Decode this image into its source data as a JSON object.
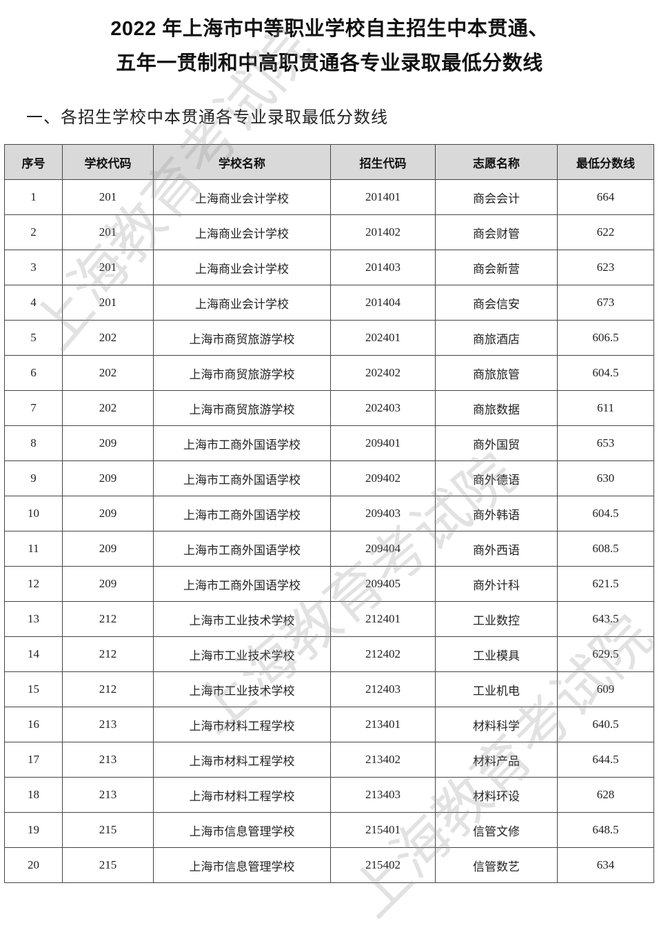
{
  "title_line1": "2022 年上海市中等职业学校自主招生中本贯通、",
  "title_line2": "五年一贯制和中高职贯通各专业录取最低分数线",
  "section_title": "一、各招生学校中本贯通各专业录取最低分数线",
  "watermark": "上海教育考试院",
  "table": {
    "headers": [
      "序号",
      "学校代码",
      "学校名称",
      "招生代码",
      "志愿名称",
      "最低分数线"
    ],
    "rows": [
      [
        "1",
        "201",
        "上海商业会计学校",
        "201401",
        "商会会计",
        "664"
      ],
      [
        "2",
        "201",
        "上海商业会计学校",
        "201402",
        "商会财管",
        "622"
      ],
      [
        "3",
        "201",
        "上海商业会计学校",
        "201403",
        "商会新营",
        "623"
      ],
      [
        "4",
        "201",
        "上海商业会计学校",
        "201404",
        "商会信安",
        "673"
      ],
      [
        "5",
        "202",
        "上海市商贸旅游学校",
        "202401",
        "商旅酒店",
        "606.5"
      ],
      [
        "6",
        "202",
        "上海市商贸旅游学校",
        "202402",
        "商旅旅管",
        "604.5"
      ],
      [
        "7",
        "202",
        "上海市商贸旅游学校",
        "202403",
        "商旅数据",
        "611"
      ],
      [
        "8",
        "209",
        "上海市工商外国语学校",
        "209401",
        "商外国贸",
        "653"
      ],
      [
        "9",
        "209",
        "上海市工商外国语学校",
        "209402",
        "商外德语",
        "630"
      ],
      [
        "10",
        "209",
        "上海市工商外国语学校",
        "209403",
        "商外韩语",
        "604.5"
      ],
      [
        "11",
        "209",
        "上海市工商外国语学校",
        "209404",
        "商外西语",
        "608.5"
      ],
      [
        "12",
        "209",
        "上海市工商外国语学校",
        "209405",
        "商外计科",
        "621.5"
      ],
      [
        "13",
        "212",
        "上海市工业技术学校",
        "212401",
        "工业数控",
        "643.5"
      ],
      [
        "14",
        "212",
        "上海市工业技术学校",
        "212402",
        "工业模具",
        "629.5"
      ],
      [
        "15",
        "212",
        "上海市工业技术学校",
        "212403",
        "工业机电",
        "609"
      ],
      [
        "16",
        "213",
        "上海市材料工程学校",
        "213401",
        "材料科学",
        "640.5"
      ],
      [
        "17",
        "213",
        "上海市材料工程学校",
        "213402",
        "材料产品",
        "644.5"
      ],
      [
        "18",
        "213",
        "上海市材料工程学校",
        "213403",
        "材料环设",
        "628"
      ],
      [
        "19",
        "215",
        "上海市信息管理学校",
        "215401",
        "信管文修",
        "648.5"
      ],
      [
        "20",
        "215",
        "上海市信息管理学校",
        "215402",
        "信管数艺",
        "634"
      ]
    ]
  }
}
